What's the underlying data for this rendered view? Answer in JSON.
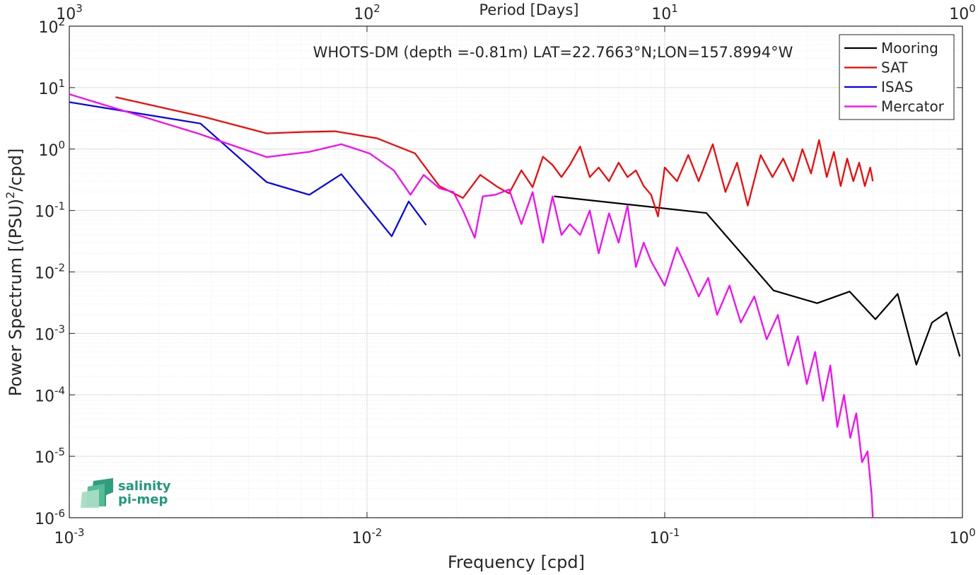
{
  "chart_data": {
    "type": "line",
    "title": "WHOTS-DM (depth =-0.81m) LAT=22.7663°N;LON=157.8994°W",
    "xlabel": "Frequency [cpd]",
    "ylabel": "Power Spectrum [(PSU)",
    "ylabel_sup": "2",
    "ylabel_tail": "/cpd]",
    "top_xlabel": "Period [Days]",
    "x_scale": "log",
    "y_scale": "log",
    "xlim": [
      0.001,
      1
    ],
    "ylim": [
      1e-06,
      100
    ],
    "grid": true,
    "legend_position": "top-right",
    "x_ticks": [
      {
        "base": "10",
        "exp": "-3",
        "value": 0.001
      },
      {
        "base": "10",
        "exp": "-2",
        "value": 0.01
      },
      {
        "base": "10",
        "exp": "-1",
        "value": 0.1
      },
      {
        "base": "10",
        "exp": "0",
        "value": 1
      }
    ],
    "y_ticks": [
      {
        "base": "10",
        "exp": "-6",
        "value": 1e-06
      },
      {
        "base": "10",
        "exp": "-5",
        "value": 1e-05
      },
      {
        "base": "10",
        "exp": "-4",
        "value": 0.0001
      },
      {
        "base": "10",
        "exp": "-3",
        "value": 0.001
      },
      {
        "base": "10",
        "exp": "-2",
        "value": 0.01
      },
      {
        "base": "10",
        "exp": "-1",
        "value": 0.1
      },
      {
        "base": "10",
        "exp": "0",
        "value": 1
      },
      {
        "base": "10",
        "exp": "1",
        "value": 10
      },
      {
        "base": "10",
        "exp": "2",
        "value": 100
      }
    ],
    "top_ticks": [
      {
        "base": "10",
        "exp": "3",
        "value": 0.001
      },
      {
        "base": "10",
        "exp": "2",
        "value": 0.01
      },
      {
        "base": "10",
        "exp": "1",
        "value": 0.1
      },
      {
        "base": "10",
        "exp": "0",
        "value": 1
      }
    ],
    "series": [
      {
        "name": "Mooring",
        "color": "#000000",
        "x": [
          0.0425,
          0.138,
          0.232,
          0.325,
          0.418,
          0.51,
          0.606,
          0.7,
          0.79,
          0.885,
          0.98
        ],
        "y": [
          0.17,
          0.091,
          0.005,
          0.0031,
          0.0048,
          0.0017,
          0.0044,
          0.00031,
          0.0015,
          0.0022,
          0.00042
        ]
      },
      {
        "name": "SAT",
        "color": "#ff0000",
        "x": [
          0.00143,
          0.00286,
          0.0046,
          0.0062,
          0.0078,
          0.0108,
          0.0145,
          0.0175,
          0.021,
          0.024,
          0.0275,
          0.03,
          0.033,
          0.036,
          0.039,
          0.042,
          0.045,
          0.048,
          0.052,
          0.056,
          0.06,
          0.065,
          0.07,
          0.075,
          0.08,
          0.085,
          0.09,
          0.095,
          0.1,
          0.11,
          0.12,
          0.13,
          0.145,
          0.16,
          0.175,
          0.19,
          0.21,
          0.23,
          0.25,
          0.27,
          0.29,
          0.31,
          0.33,
          0.35,
          0.37,
          0.39,
          0.41,
          0.43,
          0.45,
          0.47,
          0.49,
          0.5
        ],
        "y": [
          7,
          3.3,
          1.8,
          1.9,
          1.95,
          1.5,
          0.85,
          0.25,
          0.16,
          0.38,
          0.24,
          0.19,
          0.45,
          0.24,
          0.75,
          0.55,
          0.35,
          0.55,
          1.1,
          0.35,
          0.5,
          0.3,
          0.6,
          0.35,
          0.45,
          0.25,
          0.18,
          0.08,
          0.5,
          0.3,
          0.8,
          0.3,
          1.2,
          0.2,
          0.6,
          0.12,
          0.8,
          0.35,
          0.7,
          0.3,
          1.0,
          0.4,
          1.4,
          0.35,
          0.9,
          0.25,
          0.7,
          0.3,
          0.6,
          0.25,
          0.5,
          0.3
        ]
      },
      {
        "name": "ISAS",
        "color": "#0000ff",
        "x": [
          0.001,
          0.00276,
          0.0046,
          0.0064,
          0.0082,
          0.0121,
          0.0138,
          0.0158
        ],
        "y": [
          5.8,
          2.6,
          0.29,
          0.18,
          0.39,
          0.038,
          0.14,
          0.058
        ]
      },
      {
        "name": "Mercator",
        "color": "#ff00ff",
        "x": [
          0.001,
          0.0027,
          0.0046,
          0.0064,
          0.0082,
          0.0102,
          0.0123,
          0.014,
          0.0155,
          0.0175,
          0.0195,
          0.021,
          0.023,
          0.0245,
          0.027,
          0.03,
          0.033,
          0.036,
          0.039,
          0.042,
          0.045,
          0.048,
          0.052,
          0.056,
          0.06,
          0.065,
          0.07,
          0.075,
          0.08,
          0.085,
          0.09,
          0.1,
          0.11,
          0.12,
          0.13,
          0.14,
          0.15,
          0.165,
          0.18,
          0.2,
          0.22,
          0.24,
          0.26,
          0.28,
          0.3,
          0.32,
          0.34,
          0.36,
          0.38,
          0.4,
          0.42,
          0.44,
          0.46,
          0.48,
          0.495,
          0.5
        ],
        "y": [
          7.8,
          1.8,
          0.74,
          0.9,
          1.2,
          0.85,
          0.45,
          0.18,
          0.38,
          0.23,
          0.2,
          0.1,
          0.036,
          0.17,
          0.18,
          0.22,
          0.06,
          0.2,
          0.03,
          0.17,
          0.04,
          0.06,
          0.04,
          0.1,
          0.02,
          0.09,
          0.03,
          0.12,
          0.012,
          0.03,
          0.015,
          0.006,
          0.025,
          0.01,
          0.004,
          0.008,
          0.002,
          0.006,
          0.0015,
          0.004,
          0.0008,
          0.002,
          0.0003,
          0.0009,
          0.00015,
          0.0005,
          8e-05,
          0.0003,
          3e-05,
          0.0001,
          2e-05,
          5e-05,
          8e-06,
          1.2e-05,
          2.5e-06,
          1e-06
        ]
      }
    ]
  },
  "logo": {
    "line1": "salinity",
    "line2": "pi-mep"
  }
}
